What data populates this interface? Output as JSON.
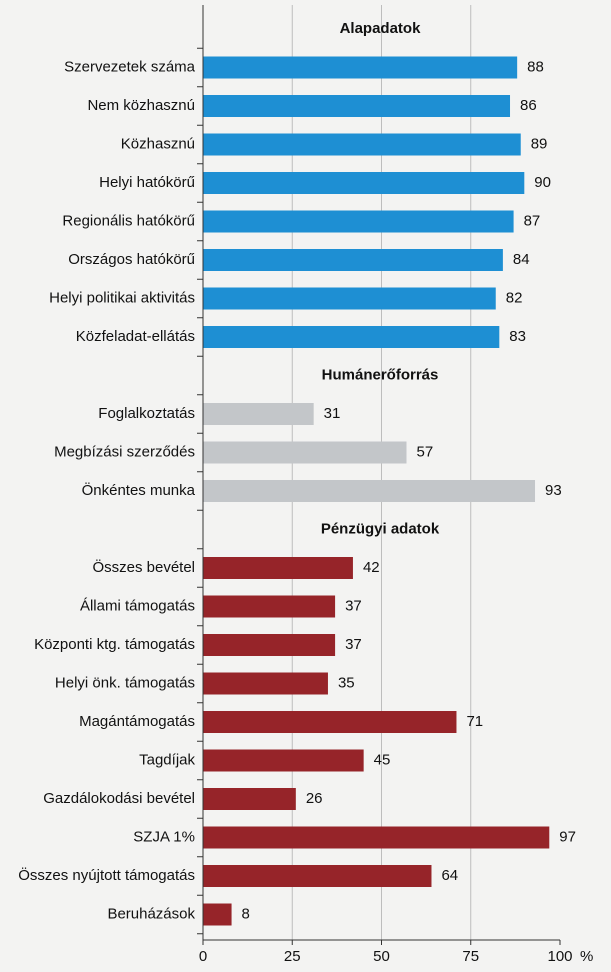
{
  "chart_data": {
    "type": "bar",
    "orientation": "horizontal",
    "xlim": [
      0,
      100
    ],
    "xticks": [
      0,
      25,
      50,
      75,
      100
    ],
    "xlabel": "%",
    "grid": true,
    "groups": [
      {
        "title": "Alapadatok",
        "color": "#1e8fd3",
        "categories": [
          "Szervezetek száma",
          "Nem közhasznú",
          "Közhasznú",
          "Helyi hatókörű",
          "Regionális hatókörű",
          "Országos hatókörű",
          "Helyi politikai aktivitás",
          "Közfeladat-ellátás"
        ],
        "values": [
          88,
          86,
          89,
          90,
          87,
          84,
          82,
          83
        ]
      },
      {
        "title": "Humánerőforrás",
        "color": "#c3c6c9",
        "categories": [
          "Foglalkoztatás",
          "Megbízási szerződés",
          "Önkéntes munka"
        ],
        "values": [
          31,
          57,
          93
        ]
      },
      {
        "title": "Pénzügyi adatok",
        "color": "#962429",
        "categories": [
          "Összes bevétel",
          "Állami támogatás",
          "Központi ktg. támogatás",
          "Helyi önk. támogatás",
          "Magántámogatás",
          "Tagdíjak",
          "Gazdálokodási bevétel",
          "SZJA 1%",
          "Összes nyújtott támogatás",
          "Beruházások"
        ],
        "values": [
          42,
          37,
          37,
          35,
          71,
          45,
          26,
          97,
          64,
          8
        ]
      }
    ]
  }
}
